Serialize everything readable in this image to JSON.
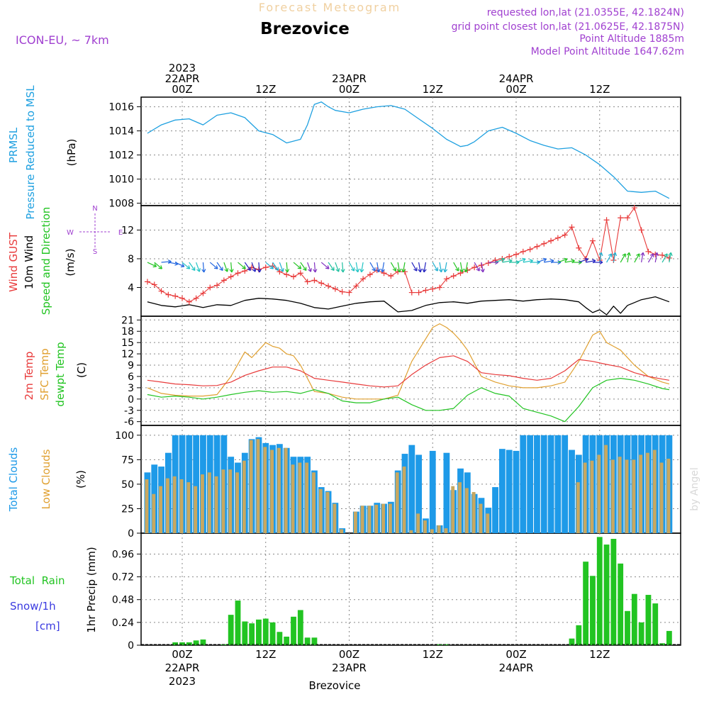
{
  "header": {
    "app_title": "Forecast Meteogram",
    "location": "Brezovice",
    "model": "ICON-EU, ~ 7km",
    "requested": "requested lon,lat (21.0355E, 42.1824N)",
    "grid_point": "grid point closest lon,lat (21.0625E, 42.1875N)",
    "point_altitude": "Point Altitude 1885m",
    "model_altitude": "Model Point Altitude 1647.62m",
    "footer_location": "Brezovice",
    "watermark": "by Angel"
  },
  "time_axis": {
    "top_labels": [
      {
        "hour": 0,
        "lines": [
          "2023",
          "22APR",
          "00Z"
        ]
      },
      {
        "hour": 12,
        "lines": [
          "12Z"
        ]
      },
      {
        "hour": 24,
        "lines": [
          "23APR",
          "00Z"
        ]
      },
      {
        "hour": 36,
        "lines": [
          "12Z"
        ]
      },
      {
        "hour": 48,
        "lines": [
          "24APR",
          "00Z"
        ]
      },
      {
        "hour": 60,
        "lines": [
          "12Z"
        ]
      }
    ],
    "bottom_labels": [
      {
        "hour": 0,
        "lines": [
          "00Z",
          "22APR",
          "2023"
        ]
      },
      {
        "hour": 12,
        "lines": [
          "12Z"
        ]
      },
      {
        "hour": 24,
        "lines": [
          "00Z",
          "23APR"
        ]
      },
      {
        "hour": 36,
        "lines": [
          "12Z"
        ]
      },
      {
        "hour": 48,
        "lines": [
          "00Z",
          "24APR"
        ]
      },
      {
        "hour": 60,
        "lines": [
          "12Z"
        ]
      }
    ]
  },
  "panels": {
    "pressure": {
      "label": "PRMSL",
      "label2": "Pressure Reduced to MSL",
      "unit": "(hPa)",
      "ticks": [
        "1008",
        "1010",
        "1012",
        "1014",
        "1016"
      ]
    },
    "wind": {
      "label_gust": "Wind GUST",
      "label_wind": "10m Wind",
      "label_dir": "Speed and Direction",
      "unit": "(m/s)",
      "ticks": [
        "4",
        "8",
        "12"
      ],
      "compass": {
        "n": "N",
        "s": "S",
        "w": "W",
        "e": "E"
      }
    },
    "temp": {
      "label_t": "2m Temp",
      "label_sfc": "SFC Temp",
      "label_dew": "dewpt Temp",
      "unit": "(C)",
      "ticks": [
        "21",
        "18",
        "15",
        "12",
        "9",
        "6",
        "3",
        "0",
        "-3",
        "-6"
      ]
    },
    "clouds": {
      "label_total": "Total Clouds",
      "label_low": "Low Clouds",
      "unit": "(%)",
      "ticks": [
        "0",
        "25",
        "50",
        "75",
        "100"
      ]
    },
    "precip": {
      "label_rain": "Total  Rain",
      "label_snow": "Snow/1h",
      "label_cm": "[cm]",
      "unit": "1hr Precip (mm)",
      "ticks": [
        "0",
        "0.24",
        "0.48",
        "0.72",
        "0.96"
      ]
    }
  },
  "colors": {
    "pressure": "#1ea0e0",
    "gust": "#e83a3a",
    "wind": "#000000",
    "sfc": "#e0a030",
    "t2m": "#e83a3a",
    "dew": "#22c422",
    "total_clouds": "#1e9ae8",
    "low_clouds": "#c8a860",
    "precip": "#22c422",
    "purple": "#a040d0",
    "orange_title": "#f0d0a0"
  },
  "chart_data": [
    {
      "type": "line",
      "name": "pressure",
      "x": [
        -5,
        -3,
        -1,
        1,
        3,
        5,
        7,
        9,
        11,
        13,
        15,
        17,
        18,
        19,
        20,
        21,
        22,
        24,
        26,
        28,
        30,
        32,
        34,
        36,
        38,
        40,
        41,
        42,
        44,
        46,
        48,
        50,
        52,
        54,
        56,
        58,
        60,
        62,
        64,
        66,
        68,
        70
      ],
      "y": [
        1013.8,
        1014.5,
        1014.9,
        1015.0,
        1014.5,
        1015.3,
        1015.5,
        1015.1,
        1014.0,
        1013.7,
        1013.0,
        1013.3,
        1014.5,
        1016.2,
        1016.4,
        1016.0,
        1015.7,
        1015.5,
        1015.8,
        1016.0,
        1016.1,
        1015.8,
        1015.0,
        1014.2,
        1013.3,
        1012.7,
        1012.8,
        1013.1,
        1014.0,
        1014.3,
        1013.8,
        1013.2,
        1012.8,
        1012.5,
        1012.6,
        1012.0,
        1011.2,
        1010.2,
        1009.0,
        1008.9,
        1009.0,
        1008.4
      ],
      "ylim": [
        1007.8,
        1016.8
      ]
    },
    {
      "type": "line",
      "name": "wind_gust",
      "x": [
        -5,
        -4,
        -3,
        -2,
        -1,
        0,
        1,
        2,
        3,
        4,
        5,
        6,
        7,
        8,
        9,
        10,
        11,
        12,
        13,
        14,
        15,
        16,
        17,
        18,
        19,
        20,
        21,
        22,
        23,
        24,
        25,
        26,
        27,
        28,
        29,
        30,
        31,
        32,
        33,
        34,
        35,
        36,
        37,
        38,
        39,
        40,
        41,
        42,
        43,
        44,
        45,
        46,
        47,
        48,
        49,
        50,
        51,
        52,
        53,
        54,
        55,
        56,
        57,
        58,
        59,
        60,
        61,
        62,
        63,
        64,
        65,
        66,
        67,
        68,
        69,
        70
      ],
      "y": [
        4.8,
        4.4,
        3.5,
        3.0,
        2.8,
        2.5,
        2.0,
        2.5,
        3.2,
        4.0,
        4.3,
        5.0,
        5.5,
        6.0,
        6.3,
        6.8,
        6.5,
        6.8,
        7.0,
        6.2,
        5.8,
        5.5,
        6.0,
        4.8,
        5.0,
        4.6,
        4.2,
        3.8,
        3.4,
        3.3,
        4.2,
        5.2,
        5.8,
        6.4,
        6.0,
        5.6,
        6.2,
        6.2,
        3.3,
        3.3,
        3.6,
        3.8,
        4.0,
        5.2,
        5.6,
        6.0,
        6.4,
        6.8,
        7.1,
        7.4,
        7.8,
        8.0,
        8.3,
        8.6,
        9.0,
        9.3,
        9.7,
        10.1,
        10.5,
        10.9,
        11.3,
        12.4,
        9.5,
        8.0,
        10.5,
        7.8,
        13.4,
        7.8,
        13.7,
        13.7,
        15.1,
        12.0,
        9.0,
        8.6,
        8.5,
        8.1
      ],
      "ylim": [
        0,
        15.4
      ]
    },
    {
      "type": "line",
      "name": "wind_speed",
      "x": [
        -5,
        -3,
        -1,
        1,
        3,
        5,
        7,
        9,
        11,
        13,
        15,
        17,
        19,
        21,
        23,
        25,
        27,
        29,
        31,
        33,
        35,
        37,
        39,
        41,
        43,
        45,
        47,
        49,
        51,
        53,
        55,
        57,
        58,
        59,
        60,
        61,
        62,
        63,
        64,
        66,
        68,
        70
      ],
      "y": [
        2.0,
        1.5,
        1.3,
        1.6,
        1.2,
        1.6,
        1.5,
        2.2,
        2.5,
        2.4,
        2.2,
        1.8,
        1.2,
        1.0,
        1.4,
        1.8,
        2.0,
        2.1,
        0.6,
        0.8,
        1.5,
        1.9,
        2.0,
        1.8,
        2.1,
        2.2,
        2.3,
        2.1,
        2.3,
        2.4,
        2.3,
        2.0,
        1.2,
        0.5,
        0.9,
        0.2,
        1.4,
        0.4,
        1.5,
        2.3,
        2.7,
        2.0
      ],
      "ylim": [
        0,
        15.4
      ]
    },
    {
      "type": "line",
      "name": "sfc_temp",
      "x": [
        -5,
        -3,
        -1,
        1,
        3,
        5,
        7,
        9,
        10,
        11,
        12,
        13,
        14,
        15,
        16,
        17,
        19,
        21,
        23,
        25,
        27,
        29,
        31,
        33,
        35,
        36,
        37,
        38,
        39,
        40,
        41,
        43,
        45,
        47,
        49,
        51,
        53,
        55,
        57,
        59,
        60,
        61,
        62,
        63,
        65,
        67,
        69,
        70
      ],
      "y": [
        3.0,
        1.5,
        1.0,
        0.8,
        0.8,
        1.2,
        6.0,
        12.5,
        11.0,
        13.0,
        15.0,
        14.0,
        13.5,
        12.0,
        11.5,
        9.0,
        2.0,
        1.5,
        0.5,
        0.0,
        0.0,
        0.0,
        1.0,
        10.0,
        16.0,
        19.0,
        20.0,
        19.0,
        17.5,
        15.5,
        13.0,
        6.0,
        4.5,
        3.5,
        3.0,
        3.0,
        3.5,
        4.5,
        10.0,
        17.0,
        18.0,
        15.0,
        14.0,
        13.0,
        9.0,
        6.0,
        4.5,
        4.0
      ],
      "ylim": [
        -7,
        22
      ]
    },
    {
      "type": "line",
      "name": "temp_2m",
      "x": [
        -5,
        -3,
        -1,
        1,
        3,
        5,
        7,
        9,
        11,
        13,
        15,
        17,
        19,
        21,
        23,
        25,
        27,
        29,
        31,
        33,
        35,
        37,
        39,
        41,
        43,
        45,
        47,
        49,
        51,
        53,
        55,
        57,
        59,
        61,
        63,
        65,
        67,
        69,
        70
      ],
      "y": [
        5.0,
        4.5,
        4.0,
        3.8,
        3.5,
        3.6,
        4.5,
        6.3,
        7.5,
        8.5,
        8.5,
        7.5,
        5.5,
        5.0,
        4.5,
        4.0,
        3.5,
        3.2,
        3.5,
        6.5,
        9.0,
        11.0,
        11.5,
        10.0,
        7.0,
        6.5,
        6.2,
        5.5,
        5.0,
        5.5,
        7.5,
        10.5,
        10.0,
        9.2,
        8.5,
        7.0,
        6.0,
        5.3,
        5.0
      ],
      "ylim": [
        -7,
        22
      ]
    },
    {
      "type": "line",
      "name": "dewpt_temp",
      "x": [
        -5,
        -3,
        -1,
        1,
        3,
        5,
        7,
        9,
        11,
        13,
        15,
        17,
        19,
        21,
        23,
        25,
        27,
        29,
        31,
        33,
        35,
        37,
        39,
        41,
        43,
        45,
        47,
        49,
        51,
        53,
        55,
        57,
        59,
        61,
        63,
        65,
        67,
        69,
        70
      ],
      "y": [
        1.2,
        0.5,
        0.8,
        0.5,
        0.0,
        0.5,
        1.2,
        1.8,
        2.2,
        1.8,
        2.0,
        1.5,
        2.5,
        1.5,
        -0.5,
        -1.0,
        -1.0,
        0.0,
        0.5,
        -1.5,
        -3.0,
        -3.0,
        -2.5,
        1.0,
        3.0,
        1.5,
        0.8,
        -2.5,
        -3.5,
        -4.5,
        -6.0,
        -2.0,
        3.0,
        5.0,
        5.5,
        5.0,
        4.0,
        2.8,
        2.5
      ],
      "ylim": [
        -7,
        22
      ]
    },
    {
      "type": "bar",
      "name": "total_clouds",
      "x_start": -5,
      "values": [
        62,
        70,
        68,
        82,
        100,
        100,
        100,
        100,
        100,
        100,
        100,
        100,
        78,
        72,
        82,
        96,
        98,
        92,
        90,
        91,
        87,
        78,
        78,
        78,
        64,
        47,
        43,
        31,
        5,
        0,
        22,
        28,
        28,
        31,
        30,
        32,
        64,
        81,
        90,
        80,
        15,
        84,
        8,
        82,
        44,
        66,
        62,
        40,
        36,
        26,
        47,
        86,
        85,
        84,
        100,
        100,
        100,
        100,
        100,
        100,
        100,
        85,
        80,
        100,
        100,
        100,
        100,
        100,
        100,
        100,
        100,
        100,
        100,
        100,
        100,
        100
      ],
      "ylim": [
        0,
        110
      ]
    },
    {
      "type": "bar",
      "name": "low_clouds",
      "x_start": -5,
      "values": [
        55,
        40,
        48,
        56,
        58,
        55,
        52,
        48,
        60,
        62,
        58,
        65,
        65,
        62,
        74,
        95,
        96,
        88,
        85,
        87,
        87,
        70,
        72,
        72,
        62,
        45,
        42,
        30,
        4,
        0,
        22,
        28,
        28,
        29,
        30,
        30,
        62,
        68,
        3,
        20,
        13,
        4,
        8,
        5,
        48,
        52,
        46,
        42,
        30,
        20,
        0,
        0,
        0,
        0,
        0,
        0,
        0,
        0,
        0,
        0,
        0,
        0,
        52,
        72,
        74,
        80,
        90,
        75,
        78,
        75,
        75,
        80,
        82,
        85,
        72,
        76
      ],
      "ylim": [
        0,
        110
      ]
    },
    {
      "type": "bar",
      "name": "precip_1h",
      "x_start": -5,
      "values": [
        0,
        0,
        0,
        0,
        0.03,
        0.03,
        0.03,
        0.05,
        0.06,
        0,
        0,
        0.01,
        0.32,
        0.47,
        0.25,
        0.23,
        0.27,
        0.28,
        0.24,
        0.14,
        0.09,
        0.3,
        0.37,
        0.08,
        0.08,
        0,
        0,
        0,
        0,
        0,
        0,
        0,
        0,
        0,
        0,
        0,
        0,
        0,
        0,
        0,
        0,
        0,
        0.01,
        0.01,
        0,
        0,
        0,
        0,
        0,
        0,
        0,
        0,
        0,
        0,
        0,
        0,
        0,
        0,
        0,
        0,
        0,
        0.07,
        0.21,
        0.88,
        0.73,
        1.14,
        1.06,
        1.12,
        0.86,
        0.36,
        0.54,
        0.24,
        0.53,
        0.44,
        0.02,
        0.15
      ],
      "ylim": [
        0,
        1.18
      ]
    }
  ]
}
